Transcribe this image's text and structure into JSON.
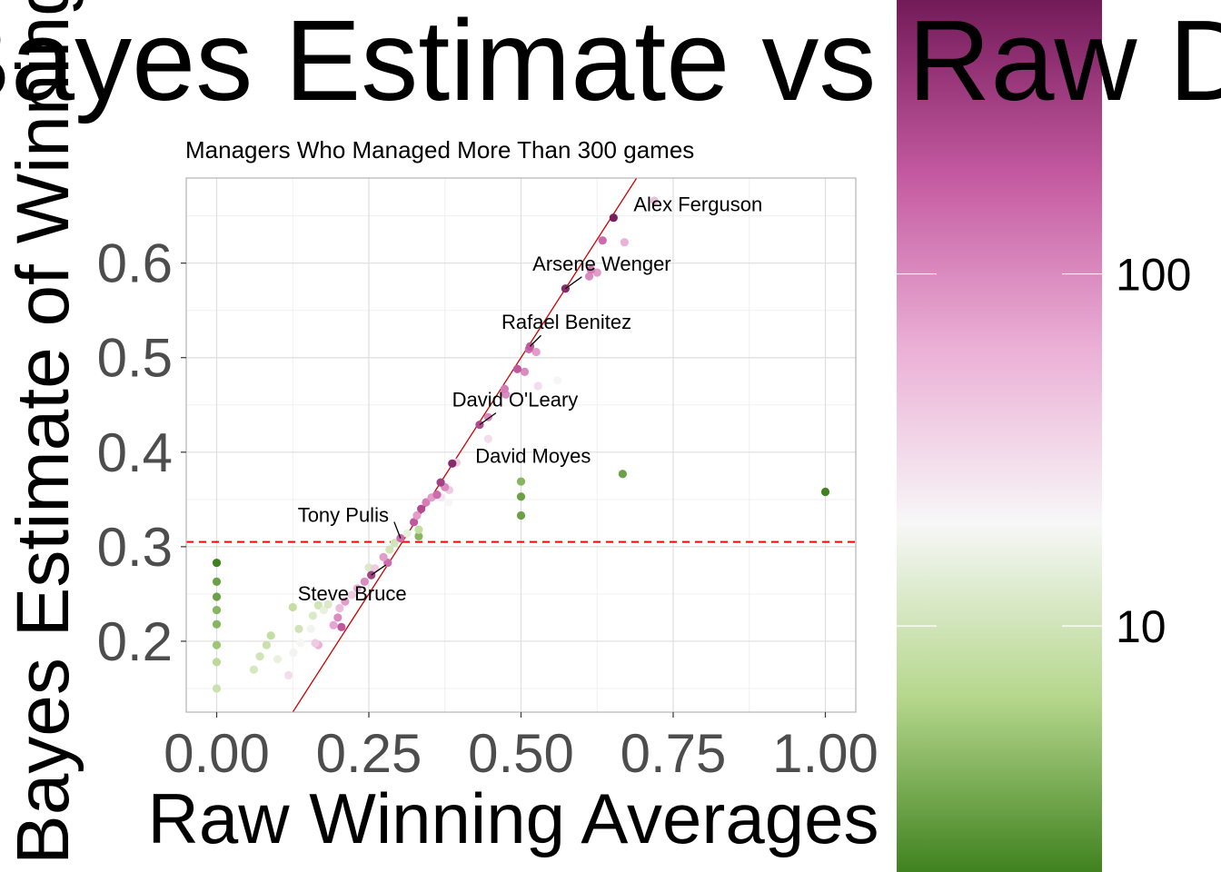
{
  "chart_data": {
    "type": "scatter",
    "title": "Bayes Estimate vs Raw Data",
    "subtitle": "Managers Who Managed More Than 300 games",
    "x_label": "Raw Winning Averages",
    "y_label": "Bayes Estimate of Winning",
    "x": [
      0.652,
      0.573,
      0.515,
      0.432,
      0.387,
      0.302,
      0.254,
      0.634,
      0.67,
      0.719,
      0.615,
      0.625,
      0.612,
      0.513,
      0.525,
      0.494,
      0.506,
      0.473,
      0.475,
      0.56,
      0.528,
      0.446,
      0.446,
      0.394,
      0.368,
      0.375,
      0.362,
      0.381,
      0.369,
      0.353,
      0.344,
      0.336,
      0.382,
      0.329,
      0.324,
      0.332,
      0.332,
      0.313,
      0.292,
      0.284,
      0.274,
      0.281,
      0.26,
      0.25,
      0.243,
      0.231,
      0.222,
      0.211,
      0.202,
      0.199,
      0.192,
      0.205,
      0.183,
      0.176,
      0.167,
      0.158,
      0.155,
      0.135,
      0.125,
      0.162,
      0.167,
      0.138,
      0.126,
      0.118,
      0.1,
      0.089,
      0.082,
      0.071,
      0.061,
      0,
      0,
      0,
      0,
      0,
      0,
      0,
      0,
      0.5,
      0.5,
      0.5,
      0.667,
      1.0
    ],
    "y": [
      0.648,
      0.573,
      0.512,
      0.429,
      0.388,
      0.309,
      0.27,
      0.624,
      0.622,
      0.666,
      0.593,
      0.59,
      0.586,
      0.509,
      0.506,
      0.488,
      0.485,
      0.467,
      0.461,
      0.476,
      0.47,
      0.437,
      0.414,
      0.389,
      0.368,
      0.363,
      0.355,
      0.347,
      0.352,
      0.352,
      0.347,
      0.34,
      0.36,
      0.333,
      0.326,
      0.318,
      0.311,
      0.314,
      0.304,
      0.297,
      0.289,
      0.283,
      0.277,
      0.278,
      0.263,
      0.256,
      0.249,
      0.242,
      0.235,
      0.225,
      0.217,
      0.215,
      0.239,
      0.233,
      0.238,
      0.227,
      0.213,
      0.213,
      0.236,
      0.198,
      0.196,
      0.198,
      0.188,
      0.164,
      0.181,
      0.206,
      0.196,
      0.184,
      0.17,
      0.283,
      0.263,
      0.247,
      0.233,
      0.218,
      0.196,
      0.178,
      0.15,
      0.369,
      0.353,
      0.333,
      0.377,
      0.358
    ],
    "color_values": [
      550,
      450,
      200,
      250,
      450,
      150,
      300,
      150,
      60,
      50,
      120,
      80,
      100,
      150,
      80,
      200,
      100,
      120,
      100,
      20,
      30,
      100,
      30,
      40,
      300,
      100,
      150,
      20,
      25,
      80,
      120,
      250,
      40,
      80,
      200,
      8,
      4,
      15,
      10,
      10,
      80,
      150,
      40,
      12,
      100,
      60,
      40,
      80,
      50,
      100,
      70,
      200,
      12,
      15,
      10,
      12,
      18,
      10,
      8,
      40,
      60,
      20,
      18,
      30,
      15,
      8,
      9,
      10,
      11,
      2,
      3,
      3,
      4,
      4,
      5,
      7,
      9,
      4,
      3,
      3,
      3,
      2
    ],
    "point_labels": [
      "Alex Ferguson",
      "Arsene Wenger",
      "Rafael Benitez",
      "David O'Leary",
      "David Moyes",
      "Tony Pulis",
      "Steve Bruce",
      null,
      null,
      null,
      null,
      null,
      null,
      null,
      null,
      null,
      null,
      null,
      null,
      null,
      null,
      null,
      null,
      null,
      null,
      null,
      null,
      null,
      null,
      null,
      null,
      null,
      null,
      null,
      null,
      null,
      null,
      null,
      null,
      null,
      null,
      null,
      null,
      null,
      null,
      null,
      null,
      null,
      null,
      null,
      null,
      null,
      null,
      null,
      null,
      null,
      null,
      null,
      null,
      null,
      null,
      null,
      null,
      null,
      null,
      null,
      null,
      null,
      null,
      null,
      null,
      null,
      null,
      null,
      null,
      null,
      null,
      null,
      null,
      null,
      null,
      null
    ],
    "xlim": [
      -0.05,
      1.05
    ],
    "ylim": [
      0.125,
      0.69
    ],
    "xticks": [
      {
        "value": 0,
        "label": "0.00"
      },
      {
        "value": 0.25,
        "label": "0.25"
      },
      {
        "value": 0.5,
        "label": "0.50"
      },
      {
        "value": 0.75,
        "label": "0.75"
      },
      {
        "value": 1,
        "label": "1.00"
      }
    ],
    "yticks": [
      0.2,
      0.3,
      0.4,
      0.5,
      0.6
    ],
    "grid": true,
    "abline": {
      "intercept": 0,
      "slope": 1,
      "color": "#cc0000"
    },
    "hline": {
      "y": 0.305,
      "color": "#ff0000",
      "dashed": true
    },
    "colorbar": {
      "log": true,
      "lim": [
        2,
        600
      ],
      "ticks": [
        10,
        100
      ],
      "colors": [
        "#40821f",
        "#b5d78c",
        "#f7f7f7",
        "#ebb0d6",
        "#c459a0",
        "#731a59"
      ]
    }
  }
}
